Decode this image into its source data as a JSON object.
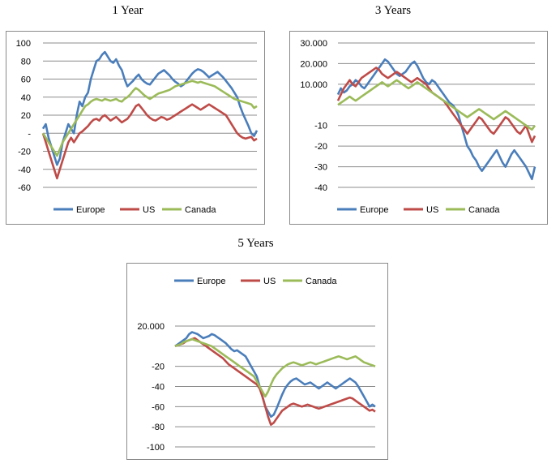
{
  "chart_data": [
    {
      "type": "line",
      "title": "1 Year",
      "ylim": [
        -60,
        100
      ],
      "yticks": [
        "100",
        "80",
        "60",
        "40",
        "20",
        "-",
        "-20",
        "-40",
        "-60"
      ],
      "grid": true,
      "legend": "bottom",
      "series": [
        {
          "name": "Europe",
          "color": "#4a7ebb",
          "values": [
            5,
            10,
            -5,
            -15,
            -25,
            -35,
            -28,
            -10,
            0,
            10,
            5,
            0,
            20,
            35,
            30,
            40,
            45,
            60,
            70,
            80,
            82,
            87,
            90,
            85,
            80,
            78,
            82,
            75,
            70,
            60,
            52,
            55,
            58,
            62,
            65,
            60,
            57,
            55,
            54,
            58,
            62,
            66,
            68,
            70,
            67,
            64,
            60,
            57,
            55,
            52,
            54,
            58,
            62,
            66,
            69,
            71,
            70,
            68,
            65,
            62,
            64,
            66,
            68,
            65,
            62,
            58,
            54,
            50,
            45,
            40,
            30,
            22,
            15,
            8,
            0,
            -3,
            3
          ]
        },
        {
          "name": "US",
          "color": "#be4b48",
          "values": [
            0,
            -10,
            -20,
            -30,
            -40,
            -50,
            -40,
            -30,
            -20,
            -10,
            -5,
            -10,
            -5,
            0,
            2,
            5,
            8,
            12,
            15,
            16,
            14,
            18,
            20,
            17,
            14,
            16,
            18,
            15,
            12,
            14,
            16,
            20,
            25,
            30,
            32,
            28,
            24,
            20,
            17,
            15,
            14,
            16,
            18,
            17,
            15,
            16,
            18,
            20,
            22,
            24,
            26,
            28,
            30,
            32,
            30,
            28,
            26,
            28,
            30,
            32,
            30,
            28,
            26,
            24,
            22,
            20,
            15,
            10,
            5,
            0,
            -3,
            -5,
            -6,
            -5,
            -4,
            -8,
            -6
          ]
        },
        {
          "name": "Canada",
          "color": "#9bbb59",
          "values": [
            0,
            -5,
            -10,
            -15,
            -20,
            -25,
            -18,
            -10,
            -5,
            0,
            5,
            10,
            15,
            20,
            25,
            30,
            32,
            35,
            37,
            38,
            37,
            36,
            38,
            37,
            36,
            37,
            38,
            36,
            35,
            38,
            40,
            43,
            47,
            50,
            48,
            45,
            42,
            40,
            38,
            40,
            42,
            44,
            45,
            46,
            47,
            48,
            50,
            52,
            53,
            54,
            55,
            56,
            57,
            58,
            57,
            56,
            57,
            56,
            55,
            54,
            53,
            52,
            50,
            48,
            46,
            44,
            42,
            40,
            38,
            37,
            36,
            35,
            34,
            33,
            32,
            28,
            30
          ]
        }
      ]
    },
    {
      "type": "line",
      "title": "3 Years",
      "ylim": [
        -40,
        30
      ],
      "yticks": [
        "30.000",
        "20.000",
        "10.000",
        "",
        "-10",
        "-20",
        "-30",
        "-40"
      ],
      "grid": true,
      "legend": "bottom",
      "series": [
        {
          "name": "Europe",
          "color": "#4a7ebb",
          "values": [
            5,
            8,
            6,
            7,
            9,
            10,
            12,
            11,
            9,
            8,
            10,
            12,
            14,
            16,
            18,
            20,
            22,
            21,
            19,
            17,
            15,
            14,
            15,
            16,
            18,
            20,
            21,
            19,
            16,
            13,
            11,
            10,
            12,
            11,
            9,
            7,
            5,
            3,
            1,
            0,
            -2,
            -5,
            -10,
            -15,
            -20,
            -22,
            -25,
            -27,
            -30,
            -32,
            -30,
            -28,
            -26,
            -24,
            -22,
            -25,
            -28,
            -30,
            -27,
            -24,
            -22,
            -24,
            -26,
            -28,
            -30,
            -33,
            -36,
            -30
          ]
        },
        {
          "name": "US",
          "color": "#be4b48",
          "values": [
            2,
            5,
            8,
            10,
            12,
            10,
            9,
            11,
            13,
            14,
            15,
            16,
            17,
            18,
            17,
            15,
            14,
            13,
            14,
            15,
            16,
            15,
            14,
            13,
            12,
            11,
            12,
            13,
            12,
            11,
            10,
            8,
            6,
            5,
            4,
            3,
            2,
            0,
            -2,
            -4,
            -6,
            -8,
            -10,
            -12,
            -14,
            -12,
            -10,
            -8,
            -6,
            -7,
            -9,
            -11,
            -13,
            -14,
            -12,
            -10,
            -8,
            -6,
            -7,
            -9,
            -11,
            -13,
            -14,
            -12,
            -10,
            -14,
            -18,
            -15
          ]
        },
        {
          "name": "Canada",
          "color": "#9bbb59",
          "values": [
            0,
            1,
            2,
            3,
            4,
            3,
            2,
            3,
            4,
            5,
            6,
            7,
            8,
            9,
            10,
            11,
            10,
            9,
            10,
            11,
            12,
            11,
            10,
            9,
            8,
            9,
            10,
            11,
            10,
            9,
            8,
            7,
            6,
            5,
            4,
            3,
            2,
            1,
            0,
            -1,
            -2,
            -3,
            -4,
            -5,
            -6,
            -5,
            -4,
            -3,
            -2,
            -3,
            -4,
            -5,
            -6,
            -7,
            -6,
            -5,
            -4,
            -3,
            -4,
            -5,
            -6,
            -7,
            -8,
            -9,
            -10,
            -11,
            -12,
            -10
          ]
        }
      ]
    },
    {
      "type": "line",
      "title": "5 Years",
      "ylim": [
        -100,
        20
      ],
      "yticks": [
        "20.000",
        "",
        "-20",
        "-40",
        "-60",
        "-80",
        "-100"
      ],
      "grid": true,
      "legend": "top",
      "series": [
        {
          "name": "Europe",
          "color": "#4a7ebb",
          "values": [
            0,
            2,
            4,
            6,
            8,
            12,
            14,
            13,
            12,
            10,
            8,
            9,
            10,
            12,
            11,
            9,
            7,
            5,
            3,
            0,
            -3,
            -5,
            -4,
            -6,
            -8,
            -10,
            -15,
            -20,
            -25,
            -30,
            -40,
            -50,
            -60,
            -65,
            -70,
            -68,
            -62,
            -55,
            -48,
            -42,
            -38,
            -35,
            -33,
            -32,
            -34,
            -36,
            -38,
            -37,
            -36,
            -38,
            -40,
            -42,
            -40,
            -38,
            -36,
            -38,
            -40,
            -42,
            -40,
            -38,
            -36,
            -34,
            -32,
            -34,
            -36,
            -40,
            -45,
            -50,
            -55,
            -60,
            -58,
            -60
          ]
        },
        {
          "name": "US",
          "color": "#be4b48",
          "values": [
            0,
            1,
            2,
            3,
            5,
            6,
            7,
            8,
            6,
            4,
            2,
            0,
            -2,
            -4,
            -6,
            -8,
            -10,
            -12,
            -15,
            -18,
            -20,
            -22,
            -24,
            -26,
            -28,
            -30,
            -32,
            -34,
            -36,
            -38,
            -42,
            -50,
            -60,
            -70,
            -78,
            -76,
            -72,
            -68,
            -64,
            -62,
            -60,
            -58,
            -57,
            -58,
            -59,
            -60,
            -59,
            -58,
            -59,
            -60,
            -61,
            -62,
            -61,
            -60,
            -59,
            -58,
            -57,
            -56,
            -55,
            -54,
            -53,
            -52,
            -51,
            -52,
            -54,
            -56,
            -58,
            -60,
            -62,
            -64,
            -63,
            -65
          ]
        },
        {
          "name": "Canada",
          "color": "#9bbb59",
          "values": [
            0,
            1,
            2,
            4,
            5,
            6,
            7,
            6,
            5,
            4,
            3,
            2,
            1,
            0,
            -2,
            -4,
            -6,
            -8,
            -10,
            -12,
            -14,
            -16,
            -18,
            -20,
            -22,
            -24,
            -26,
            -28,
            -30,
            -35,
            -40,
            -45,
            -50,
            -45,
            -38,
            -32,
            -28,
            -25,
            -22,
            -20,
            -18,
            -17,
            -16,
            -17,
            -18,
            -19,
            -18,
            -17,
            -16,
            -17,
            -18,
            -17,
            -16,
            -15,
            -14,
            -13,
            -12,
            -11,
            -10,
            -11,
            -12,
            -13,
            -12,
            -11,
            -10,
            -12,
            -14,
            -16,
            -17,
            -18,
            -19,
            -20
          ]
        }
      ]
    }
  ]
}
